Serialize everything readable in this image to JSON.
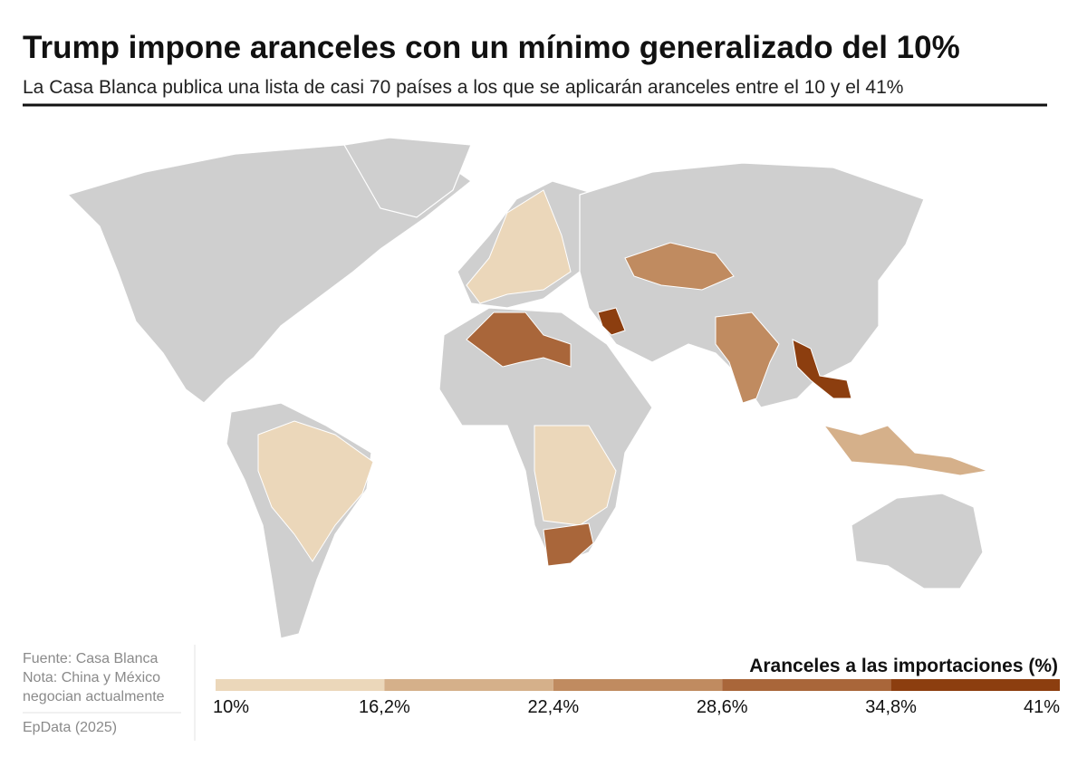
{
  "header": {
    "title": "Trump impone aranceles con un mínimo generalizado del 10%",
    "subtitle": "La Casa Blanca publica una lista de casi 70 países a los que se aplicarán aranceles entre el 10 y el 41%"
  },
  "footer": {
    "source": "Fuente: Casa Blanca",
    "note": [
      "Nota: China y México",
      "negocian actualmente"
    ],
    "credit": "EpData (2025)"
  },
  "legend": {
    "title": "Aranceles a las importaciones (%)",
    "range": [
      10,
      41
    ],
    "ticks": [
      {
        "value": 10,
        "label": "10%"
      },
      {
        "value": 16.2,
        "label": "16,2%"
      },
      {
        "value": 22.4,
        "label": "22,4%"
      },
      {
        "value": 28.6,
        "label": "28,6%"
      },
      {
        "value": 34.8,
        "label": "34,8%"
      },
      {
        "value": 41,
        "label": "41%"
      }
    ],
    "colors": [
      "#ebd7ba",
      "#d5b08a",
      "#c08b60",
      "#a9663a",
      "#8c3e0f"
    ]
  }
}
